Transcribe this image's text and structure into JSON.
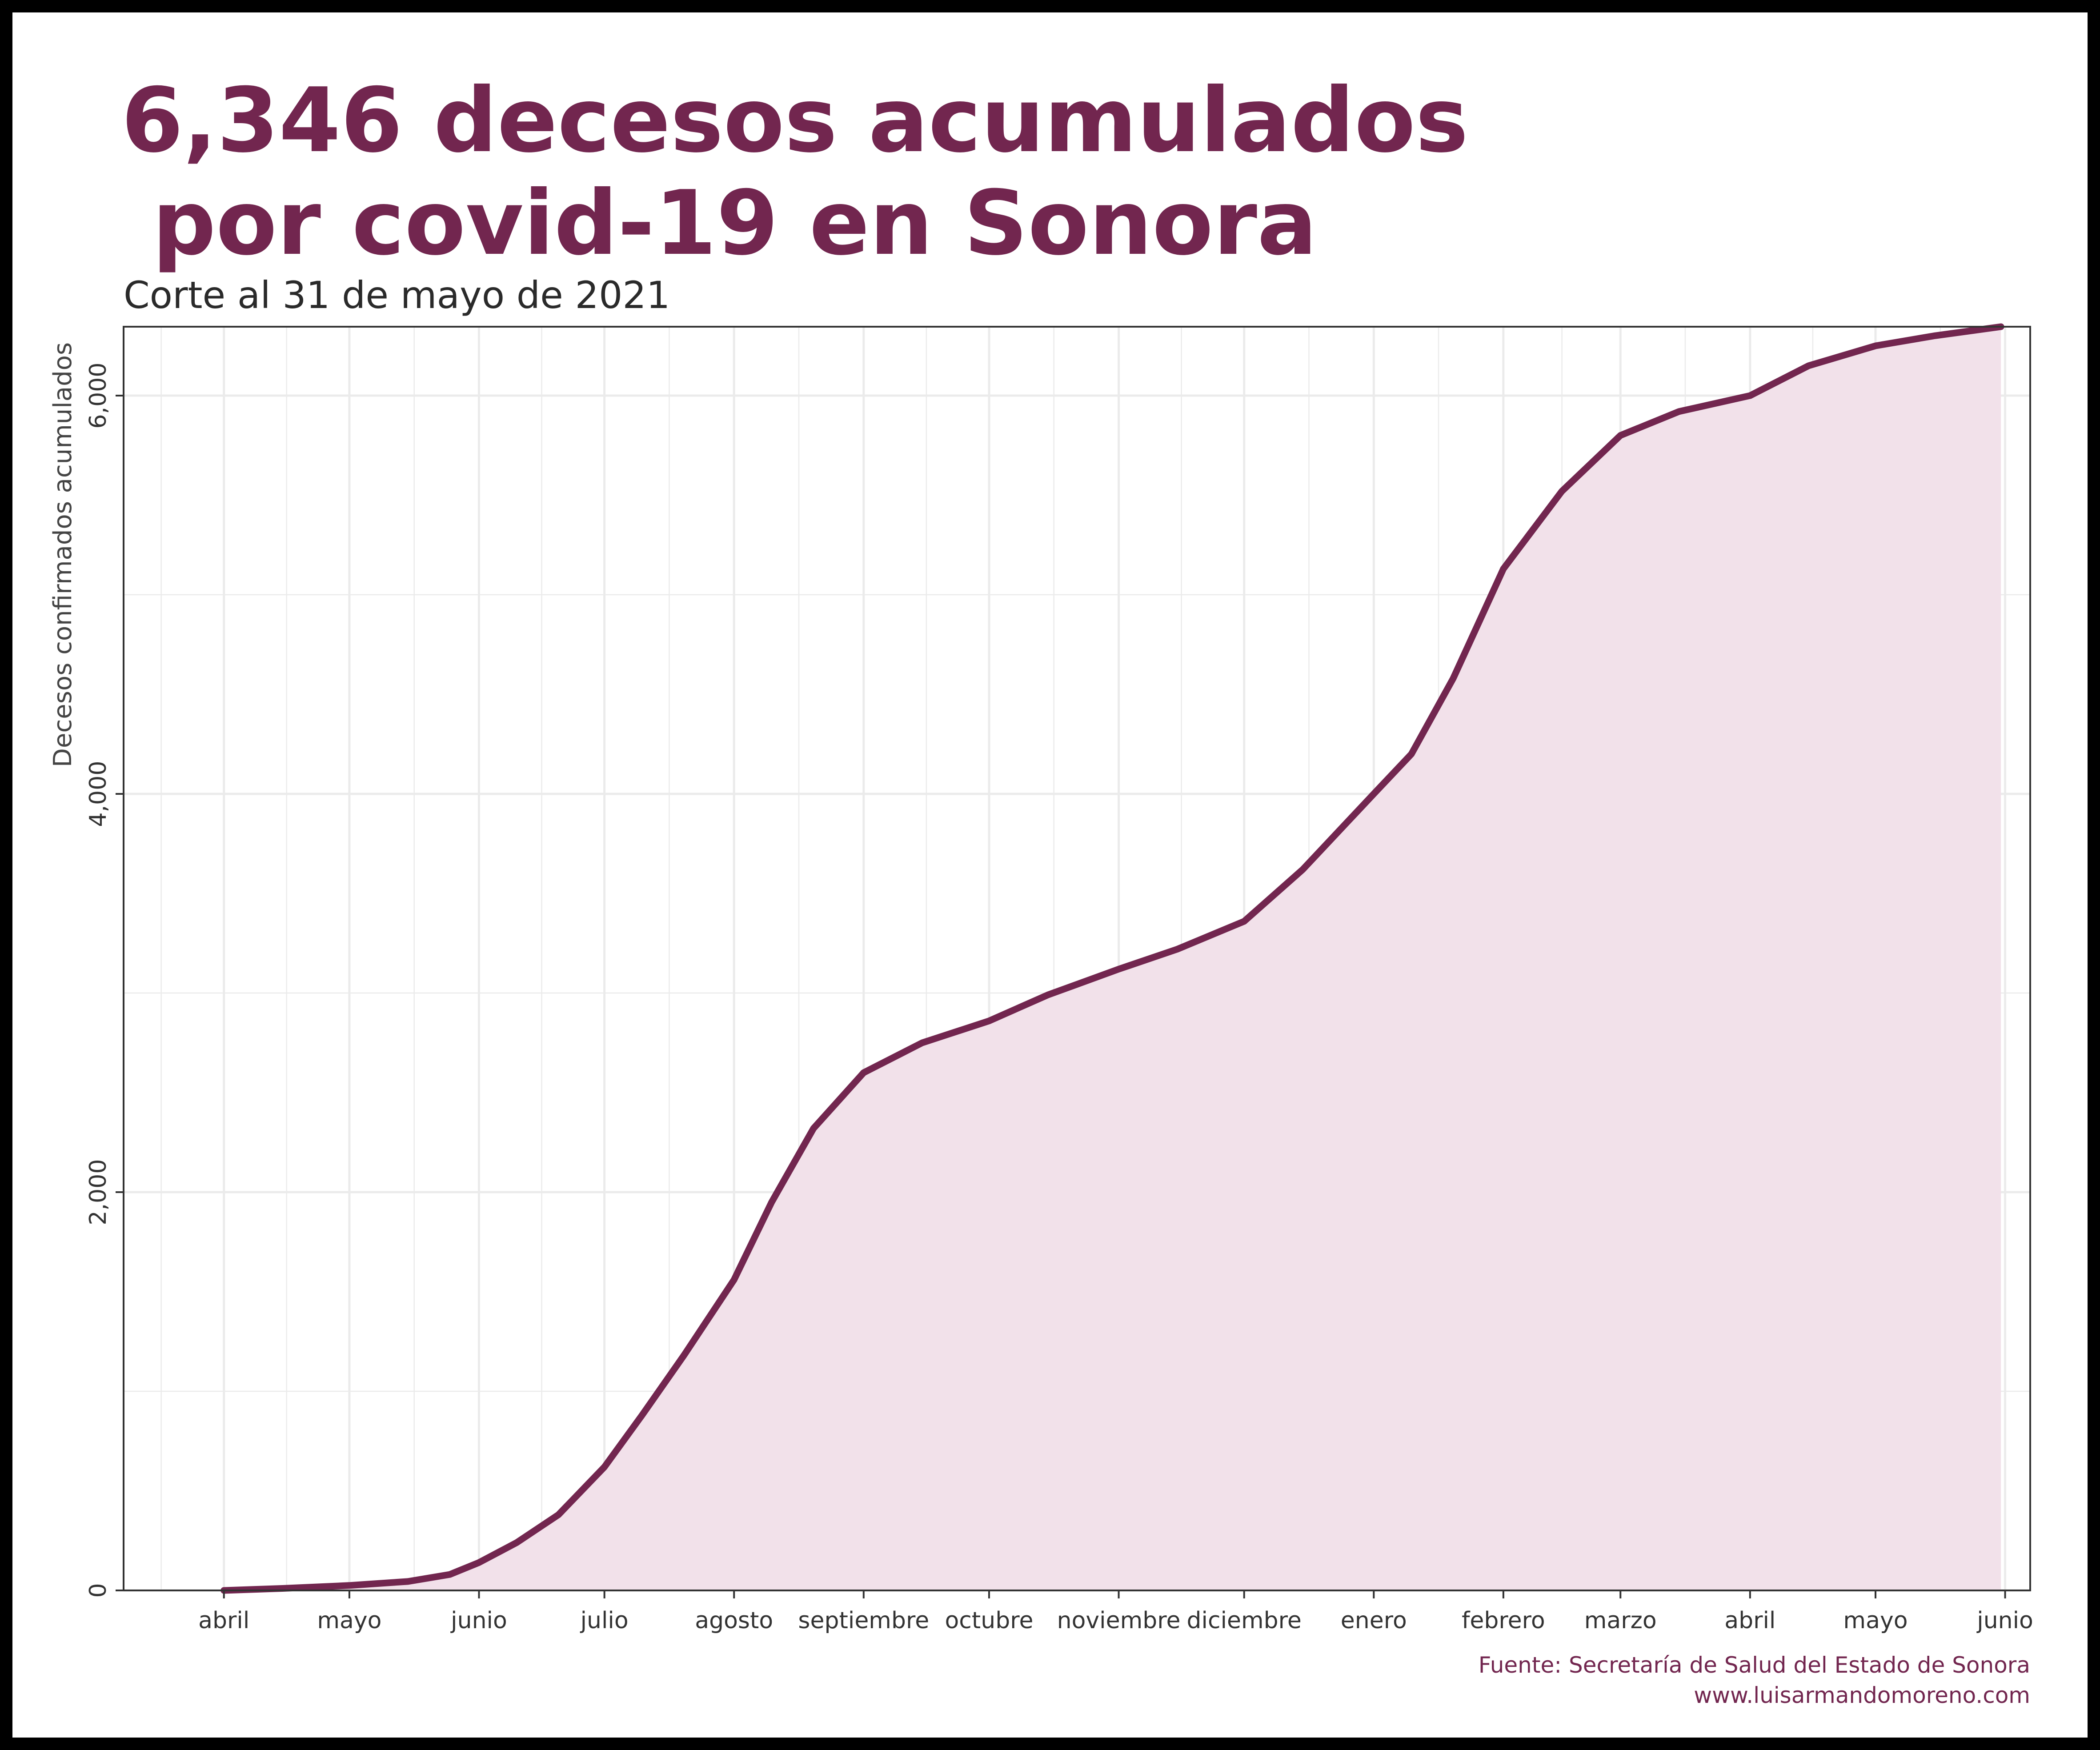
{
  "title_line1": "6,346 decesos acumulados",
  "title_line2": " por covid-19 en Sonora",
  "subtitle": "Corte al 31 de mayo de 2021",
  "caption_source": "Fuente: Secretaría de Salud del Estado de Sonora",
  "caption_url": "www.luisarmandomoreno.com",
  "colors": {
    "line": "#72264f",
    "area": "#f2e1ea",
    "highlight": "#e1a9c7",
    "title": "#72264f",
    "grid": "#ebebeb"
  },
  "chart_data": {
    "type": "area",
    "title": "6,346 decesos acumulados por covid-19 en Sonora",
    "subtitle": "Corte al 31 de mayo de 2021",
    "xlabel": "",
    "ylabel": "Decesos confirmados acumulados",
    "ylim": [
      0,
      6346
    ],
    "xlim": [
      "2020-03-08",
      "2021-06-07"
    ],
    "y_ticks": [
      0,
      2000,
      4000,
      6000
    ],
    "y_tick_labels": [
      "0",
      "2,000",
      "4,000",
      "6,000"
    ],
    "x_ticks": [
      {
        "date": "2020-04-01",
        "label": "abril"
      },
      {
        "date": "2020-05-01",
        "label": "mayo"
      },
      {
        "date": "2020-06-01",
        "label": "junio"
      },
      {
        "date": "2020-07-01",
        "label": "julio"
      },
      {
        "date": "2020-08-01",
        "label": "agosto"
      },
      {
        "date": "2020-09-01",
        "label": "septiembre"
      },
      {
        "date": "2020-10-01",
        "label": "octubre"
      },
      {
        "date": "2020-11-01",
        "label": "noviembre"
      },
      {
        "date": "2020-12-01",
        "label": "diciembre"
      },
      {
        "date": "2021-01-01",
        "label": "enero"
      },
      {
        "date": "2021-02-01",
        "label": "febrero"
      },
      {
        "date": "2021-03-01",
        "label": "marzo"
      },
      {
        "date": "2021-04-01",
        "label": "abril"
      },
      {
        "date": "2021-05-01",
        "label": "mayo"
      },
      {
        "date": "2021-06-01",
        "label": "junio"
      }
    ],
    "highlight_range": [
      "2021-01-01",
      "2021-01-31"
    ],
    "grid": true,
    "legend": "none",
    "series": [
      {
        "points": [
          [
            "2020-04-01",
            0
          ],
          [
            "2020-04-15",
            10
          ],
          [
            "2020-05-01",
            25
          ],
          [
            "2020-05-15",
            45
          ],
          [
            "2020-05-25",
            80
          ],
          [
            "2020-06-01",
            140
          ],
          [
            "2020-06-10",
            240
          ],
          [
            "2020-06-20",
            380
          ],
          [
            "2020-07-01",
            620
          ],
          [
            "2020-07-10",
            880
          ],
          [
            "2020-07-20",
            1180
          ],
          [
            "2020-08-01",
            1560
          ],
          [
            "2020-08-10",
            1950
          ],
          [
            "2020-08-20",
            2320
          ],
          [
            "2020-09-01",
            2600
          ],
          [
            "2020-09-15",
            2750
          ],
          [
            "2020-10-01",
            2860
          ],
          [
            "2020-10-15",
            2990
          ],
          [
            "2020-11-01",
            3120
          ],
          [
            "2020-11-15",
            3220
          ],
          [
            "2020-12-01",
            3360
          ],
          [
            "2020-12-15",
            3620
          ],
          [
            "2021-01-01",
            4000
          ],
          [
            "2021-01-10",
            4200
          ],
          [
            "2021-01-20",
            4580
          ],
          [
            "2021-02-01",
            5130
          ],
          [
            "2021-02-15",
            5520
          ],
          [
            "2021-03-01",
            5800
          ],
          [
            "2021-03-15",
            5920
          ],
          [
            "2021-04-01",
            6000
          ],
          [
            "2021-04-15",
            6150
          ],
          [
            "2021-05-01",
            6250
          ],
          [
            "2021-05-15",
            6300
          ],
          [
            "2021-05-31",
            6346
          ]
        ]
      }
    ]
  }
}
